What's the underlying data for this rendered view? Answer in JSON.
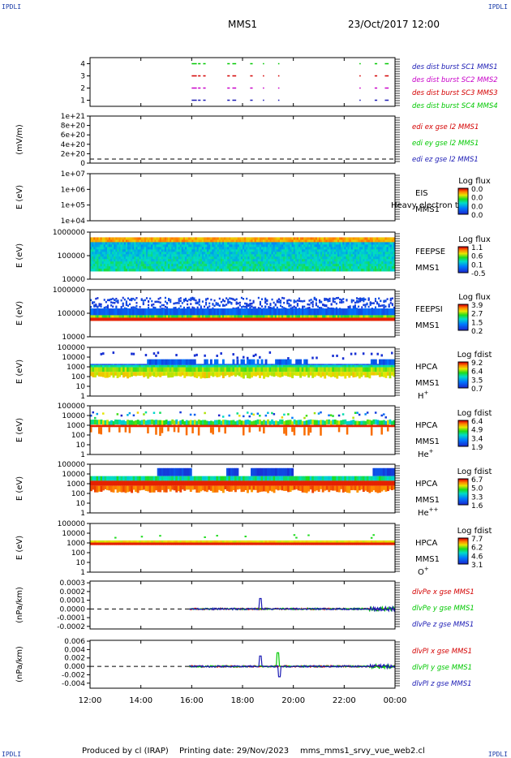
{
  "header": {
    "title": "MMS1",
    "datetime": "23/Oct/2017 12:00",
    "corner_tl": "IPDLI",
    "corner_tr": "IPDLI",
    "corner_bl": "IPDLI",
    "corner_br": "IPDLI"
  },
  "footer": {
    "produced": "Produced by cl (IRAP)",
    "printing": "Printing date: 29/Nov/2023",
    "script": "mms_mms1_srvy_vue_web2.cl"
  },
  "colors": {
    "blue": "#1a1ab4",
    "red": "#d40000",
    "green": "#00c800",
    "magenta": "#c800c8",
    "cyan": "#00b4c8"
  },
  "chart_data": [
    {
      "id": "burst",
      "type": "scatter",
      "ylabel": "",
      "yticks": [
        "1",
        "2",
        "3",
        "4"
      ],
      "ylim": [
        0.5,
        4.5
      ],
      "series": [
        {
          "name": "des dist burst SC1 MMS1",
          "color": "#1a1ab4",
          "y": 1
        },
        {
          "name": "des dist burst SC2 MMS2",
          "color": "#c800c8",
          "y": 2
        },
        {
          "name": "des dist burst SC3 MMS3",
          "color": "#d40000",
          "y": 3
        },
        {
          "name": "des dist burst SC4 MMS4",
          "color": "#00c800",
          "y": 4
        }
      ],
      "segments_hours": [
        [
          16.0,
          16.2
        ],
        [
          16.25,
          16.35
        ],
        [
          16.45,
          16.55
        ],
        [
          17.4,
          17.5
        ],
        [
          17.6,
          17.75
        ],
        [
          18.3,
          18.4
        ],
        [
          18.8,
          18.85
        ],
        [
          19.4,
          19.45
        ],
        [
          22.6,
          22.65
        ],
        [
          23.2,
          23.3
        ],
        [
          23.6,
          23.75
        ]
      ]
    },
    {
      "id": "edi",
      "type": "line",
      "ylabel": "(mV/m)",
      "yticks": [
        "0",
        "2e+20",
        "4e+20",
        "6e+20",
        "8e+20",
        "1e+21"
      ],
      "ylim": [
        0,
        1e+21
      ],
      "series": [
        {
          "name": "edi ex gse l2 MMS1",
          "color": "#d40000"
        },
        {
          "name": "edi ey gse l2 MMS1",
          "color": "#00c800"
        },
        {
          "name": "edi ez gse l2 MMS1",
          "color": "#1a1ab4"
        }
      ],
      "zero_line": true
    },
    {
      "id": "eis",
      "type": "heatmap",
      "ylabel": "E (eV)",
      "yticks": [
        "1e+04",
        "1e+05",
        "1e+06",
        "1e+07"
      ],
      "ylim": [
        10000.0,
        10000000.0
      ],
      "yscale": "log",
      "right_labels": [
        "EIS",
        "MMS1"
      ],
      "overlay_text": "Heavy electron to",
      "colorbar": {
        "title": "Log flux",
        "ticks": [
          "0.0",
          "0.0",
          "0.0",
          "0.0"
        ]
      }
    },
    {
      "id": "feepse",
      "type": "heatmap",
      "ylabel": "E (eV)",
      "yticks": [
        "10000",
        "100000",
        "1000000"
      ],
      "ylim": [
        10000.0,
        1000000.0
      ],
      "yscale": "log",
      "right_labels": [
        "FEEPSE",
        "MMS1"
      ],
      "colorbar": {
        "title": "Log flux",
        "ticks": [
          "1.1",
          "0.6",
          "0.1",
          "-0.5"
        ]
      }
    },
    {
      "id": "feepsi",
      "type": "heatmap",
      "ylabel": "E (eV)",
      "yticks": [
        "10000",
        "100000",
        "1000000"
      ],
      "ylim": [
        10000.0,
        1000000.0
      ],
      "yscale": "log",
      "right_labels": [
        "FEEPSI",
        "MMS1"
      ],
      "colorbar": {
        "title": "Log flux",
        "ticks": [
          "3.9",
          "2.7",
          "1.5",
          "0.2"
        ]
      }
    },
    {
      "id": "hpca_h",
      "type": "heatmap",
      "ylabel": "E (eV)",
      "yticks": [
        "1",
        "10",
        "100",
        "1000",
        "10000",
        "100000"
      ],
      "ylim": [
        1,
        100000.0
      ],
      "yscale": "log",
      "right_labels": [
        "HPCA",
        "MMS1"
      ],
      "species": "H",
      "species_sup": "+",
      "colorbar": {
        "title": "Log fdist",
        "ticks": [
          "9.2",
          "6.4",
          "3.5",
          "0.7"
        ]
      }
    },
    {
      "id": "hpca_he",
      "type": "heatmap",
      "ylabel": "E (eV)",
      "yticks": [
        "1",
        "10",
        "100",
        "1000",
        "10000",
        "100000"
      ],
      "ylim": [
        1,
        100000.0
      ],
      "yscale": "log",
      "right_labels": [
        "HPCA",
        "MMS1"
      ],
      "species": "He",
      "species_sup": "+",
      "colorbar": {
        "title": "Log fdist",
        "ticks": [
          "6.4",
          "4.9",
          "3.4",
          "1.9"
        ]
      }
    },
    {
      "id": "hpca_hepp",
      "type": "heatmap",
      "ylabel": "E (eV)",
      "yticks": [
        "1",
        "10",
        "100",
        "1000",
        "10000",
        "100000"
      ],
      "ylim": [
        1,
        100000.0
      ],
      "yscale": "log",
      "right_labels": [
        "HPCA",
        "MMS1"
      ],
      "species": "He",
      "species_sup": "++",
      "colorbar": {
        "title": "Log fdist",
        "ticks": [
          "6.7",
          "5.0",
          "3.3",
          "1.6"
        ]
      }
    },
    {
      "id": "hpca_o",
      "type": "heatmap",
      "ylabel": "E (eV)",
      "yticks": [
        "1",
        "10",
        "100",
        "1000",
        "10000",
        "100000"
      ],
      "ylim": [
        1,
        100000.0
      ],
      "yscale": "log",
      "right_labels": [
        "HPCA",
        "MMS1"
      ],
      "species": "O",
      "species_sup": "+",
      "colorbar": {
        "title": "Log fdist",
        "ticks": [
          "7.7",
          "6.2",
          "4.6",
          "3.1"
        ]
      }
    },
    {
      "id": "divpe",
      "type": "line",
      "ylabel": "(nPa/km)",
      "yticks": [
        "-0.0002",
        "-0.0001",
        "0.0000",
        "0.0001",
        "0.0002",
        "0.0003"
      ],
      "ylim": [
        -0.00023,
        0.00032
      ],
      "series": [
        {
          "name": "dlvPe x gse MMS1",
          "color": "#d40000"
        },
        {
          "name": "dlvPe y gse MMS1",
          "color": "#00c800"
        },
        {
          "name": "dlvPe z gse MMS1",
          "color": "#1a1ab4"
        }
      ],
      "zero_line": true,
      "data_start_hour": 15.9
    },
    {
      "id": "divpi",
      "type": "line",
      "ylabel": "(nPa/km)",
      "yticks": [
        "-0.004",
        "-0.002",
        "0.000",
        "0.002",
        "0.004",
        "0.006"
      ],
      "ylim": [
        -0.0052,
        0.0062
      ],
      "series": [
        {
          "name": "dlvPI x gse MMS1",
          "color": "#d40000"
        },
        {
          "name": "dlvPI y gse MMS1",
          "color": "#00c800"
        },
        {
          "name": "dlvPI z gse MMS1",
          "color": "#1a1ab4"
        }
      ],
      "zero_line": true,
      "data_start_hour": 15.9
    }
  ],
  "time_axis": {
    "labels": [
      "12:00",
      "14:00",
      "16:00",
      "18:00",
      "20:00",
      "22:00",
      "00:00"
    ],
    "range_hours": [
      12,
      24
    ]
  }
}
